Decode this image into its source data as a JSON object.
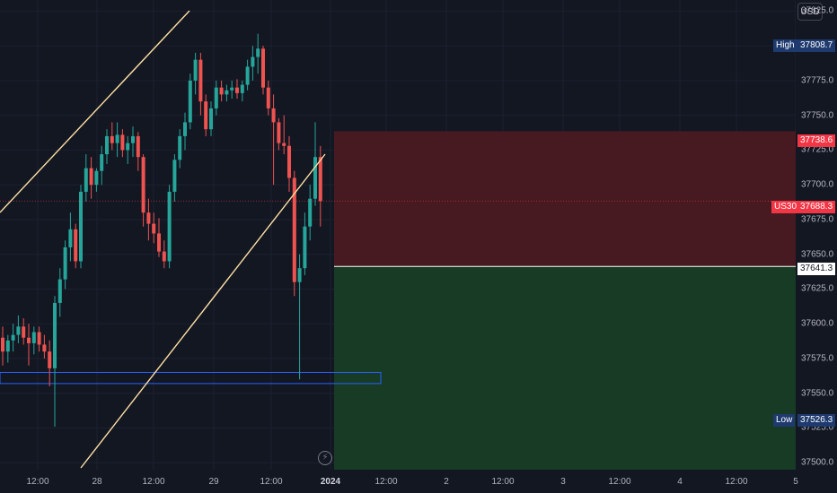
{
  "currency": "USD",
  "symbol": "US30",
  "price_axis": {
    "ticks": [
      "37825.0",
      "37800.0",
      "37775.0",
      "37750.0",
      "37725.0",
      "37700.0",
      "37675.0",
      "37650.0",
      "37625.0",
      "37600.0",
      "37575.0",
      "37550.0",
      "37525.0",
      "37500.0"
    ]
  },
  "time_axis": {
    "labels": [
      "12:00",
      "28",
      "12:00",
      "29",
      "12:00",
      "2024",
      "12:00",
      "2",
      "12:00",
      "3",
      "12:00",
      "4",
      "12:00",
      "5"
    ]
  },
  "badges": {
    "high_label": "High",
    "high_value": "37808.7",
    "stop_value": "37738.6",
    "current_label": "US30",
    "current_value": "37688.3",
    "entry_value": "37641.3",
    "low_label": "Low",
    "low_value": "37526.3"
  },
  "position_tool": {
    "type": "short",
    "entry": 37641.3,
    "stop": 37738.6,
    "target": 37500.0
  },
  "demand_zone": {
    "top": 37565,
    "bottom": 37557
  },
  "colors": {
    "background": "#131722",
    "up_candle": "#26a69a",
    "down_candle": "#ef5350",
    "stop_zone": "#4a1a22",
    "target_zone": "#173d25",
    "channel": "#ffe0a3",
    "zone_border": "#2962ff",
    "high_low_badge": "#1e3a6e",
    "current_badge": "#f23645"
  },
  "chart_data": {
    "type": "candlestick",
    "candles": [
      [
        37590,
        37598,
        37570,
        37580
      ],
      [
        37580,
        37592,
        37572,
        37588
      ],
      [
        37588,
        37600,
        37580,
        37592
      ],
      [
        37592,
        37606,
        37586,
        37598
      ],
      [
        37598,
        37604,
        37585,
        37590
      ],
      [
        37590,
        37600,
        37570,
        37586
      ],
      [
        37586,
        37598,
        37578,
        37594
      ],
      [
        37594,
        37598,
        37580,
        37585
      ],
      [
        37585,
        37592,
        37575,
        37580
      ],
      [
        37580,
        37588,
        37555,
        37568
      ],
      [
        37568,
        37620,
        37526,
        37615
      ],
      [
        37615,
        37640,
        37605,
        37632
      ],
      [
        37632,
        37660,
        37625,
        37655
      ],
      [
        37655,
        37680,
        37645,
        37668
      ],
      [
        37668,
        37672,
        37640,
        37645
      ],
      [
        37645,
        37700,
        37640,
        37695
      ],
      [
        37695,
        37722,
        37688,
        37712
      ],
      [
        37712,
        37720,
        37690,
        37700
      ],
      [
        37700,
        37712,
        37695,
        37710
      ],
      [
        37710,
        37728,
        37700,
        37722
      ],
      [
        37722,
        37740,
        37715,
        37735
      ],
      [
        37735,
        37745,
        37725,
        37730
      ],
      [
        37730,
        37745,
        37720,
        37736
      ],
      [
        37736,
        37740,
        37720,
        37725
      ],
      [
        37725,
        37735,
        37715,
        37730
      ],
      [
        37730,
        37742,
        37720,
        37735
      ],
      [
        37735,
        37738,
        37710,
        37720
      ],
      [
        37720,
        37722,
        37670,
        37680
      ],
      [
        37680,
        37690,
        37660,
        37672
      ],
      [
        37672,
        37680,
        37658,
        37665
      ],
      [
        37665,
        37676,
        37648,
        37652
      ],
      [
        37652,
        37660,
        37640,
        37645
      ],
      [
        37645,
        37700,
        37640,
        37695
      ],
      [
        37695,
        37722,
        37688,
        37718
      ],
      [
        37718,
        37740,
        37712,
        37735
      ],
      [
        37735,
        37752,
        37725,
        37745
      ],
      [
        37745,
        37780,
        37740,
        37775
      ],
      [
        37775,
        37795,
        37765,
        37790
      ],
      [
        37790,
        37795,
        37750,
        37760
      ],
      [
        37760,
        37765,
        37735,
        37740
      ],
      [
        37740,
        37760,
        37735,
        37755
      ],
      [
        37755,
        37775,
        37750,
        37770
      ],
      [
        37770,
        37775,
        37760,
        37765
      ],
      [
        37765,
        37772,
        37760,
        37768
      ],
      [
        37768,
        37775,
        37762,
        37770
      ],
      [
        37770,
        37776,
        37762,
        37766
      ],
      [
        37766,
        37775,
        37760,
        37772
      ],
      [
        37772,
        37790,
        37768,
        37785
      ],
      [
        37785,
        37800,
        37775,
        37792
      ],
      [
        37792,
        37808.7,
        37780,
        37798
      ],
      [
        37798,
        37800,
        37765,
        37770
      ],
      [
        37770,
        37775,
        37750,
        37755
      ],
      [
        37755,
        37765,
        37700,
        37745
      ],
      [
        37745,
        37748,
        37725,
        37730
      ],
      [
        37730,
        37750,
        37722,
        37728
      ],
      [
        37728,
        37735,
        37695,
        37705
      ],
      [
        37705,
        37710,
        37620,
        37630
      ],
      [
        37630,
        37650,
        37560,
        37640
      ],
      [
        37640,
        37680,
        37635,
        37670
      ],
      [
        37670,
        37700,
        37660,
        37690
      ],
      [
        37690,
        37745,
        37685,
        37720
      ],
      [
        37720,
        37728,
        37670,
        37688.3
      ]
    ],
    "price_range": [
      37495,
      37833
    ]
  }
}
